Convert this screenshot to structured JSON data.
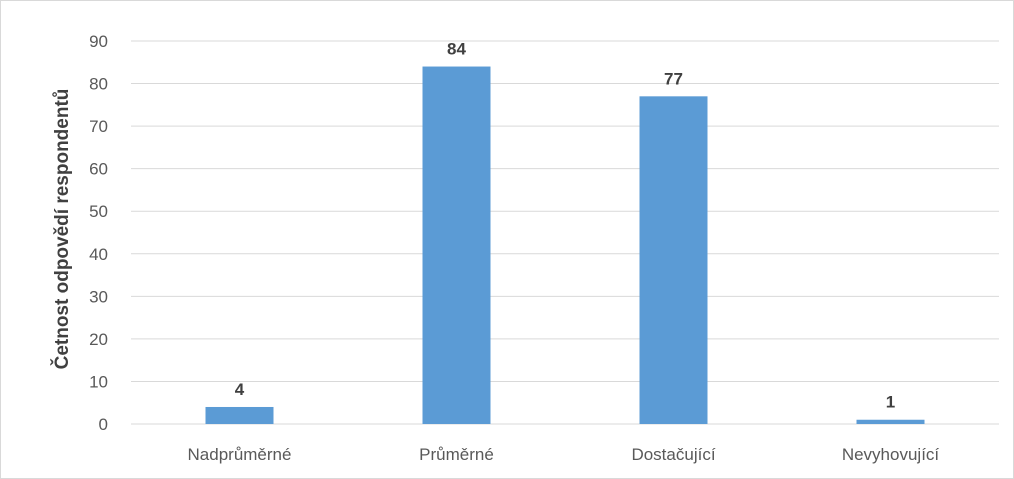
{
  "chart_data": {
    "type": "bar",
    "categories": [
      "Nadprůměrné",
      "Průměrné",
      "Dostačující",
      "Nevyhovující"
    ],
    "values": [
      4,
      84,
      77,
      1
    ],
    "data_labels": [
      "4",
      "84",
      "77",
      "1"
    ],
    "title": "",
    "xlabel": "",
    "ylabel": "Četnost odpovědí respondentů",
    "ylim": [
      0,
      90
    ],
    "yticks": [
      0,
      10,
      20,
      30,
      40,
      50,
      60,
      70,
      80,
      90
    ],
    "ytick_labels": [
      "0",
      "10",
      "20",
      "30",
      "40",
      "50",
      "60",
      "70",
      "80",
      "90"
    ],
    "grid": true,
    "legend": "none",
    "bar_color": "#5b9bd5",
    "grid_color": "#d9d9d9"
  }
}
